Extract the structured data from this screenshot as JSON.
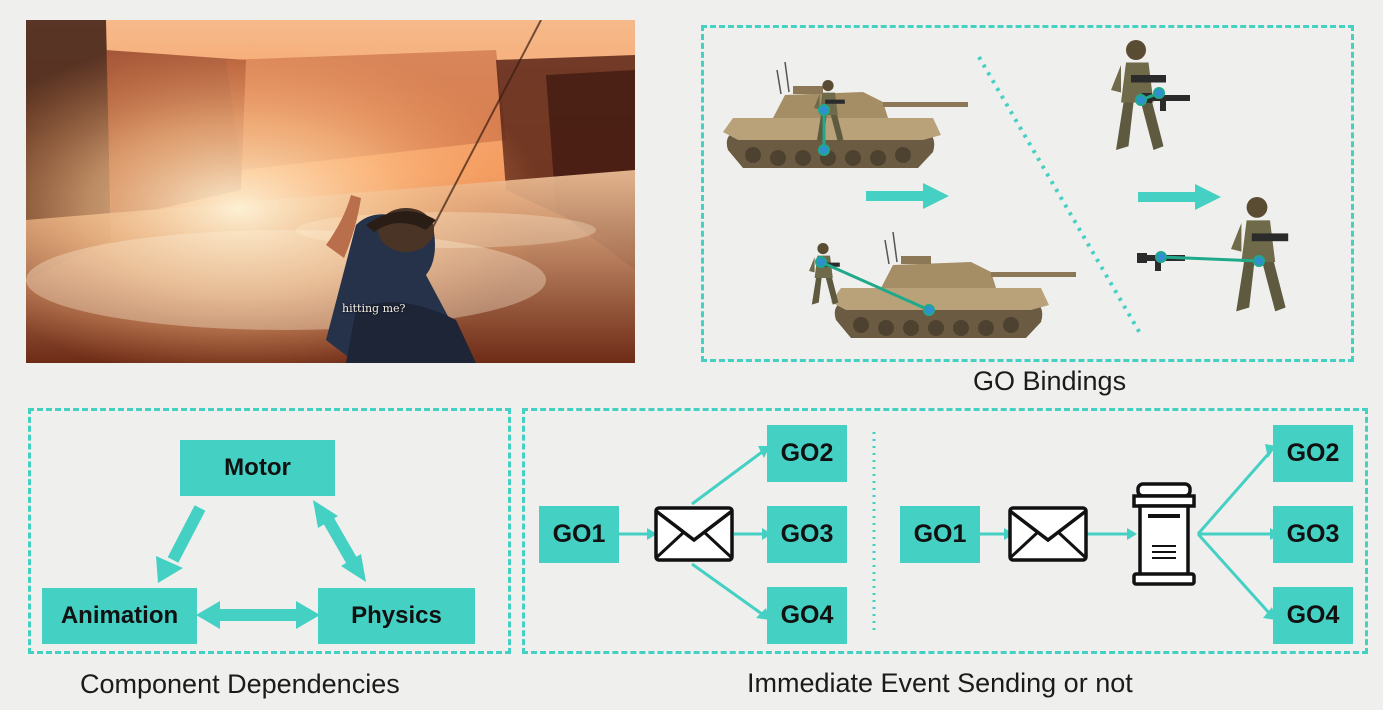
{
  "colors": {
    "accent": "#45d0c4",
    "background": "#efefed",
    "edge": "#1fa98a"
  },
  "game_screenshot": {
    "subtitle": "hitting me?"
  },
  "go_bindings": {
    "caption": "GO Bindings"
  },
  "component_dependencies": {
    "caption": "Component Dependencies",
    "nodes": {
      "motor": "Motor",
      "animation": "Animation",
      "physics": "Physics"
    }
  },
  "event_sending": {
    "caption": "Immediate Event Sending or not",
    "immediate": {
      "sender": "GO1",
      "receivers": [
        "GO2",
        "GO3",
        "GO4"
      ],
      "message_icon": "envelope-icon"
    },
    "queued": {
      "sender": "GO1",
      "receivers": [
        "GO2",
        "GO3",
        "GO4"
      ],
      "message_icon": "envelope-icon",
      "queue_icon": "mailbox-icon"
    }
  }
}
